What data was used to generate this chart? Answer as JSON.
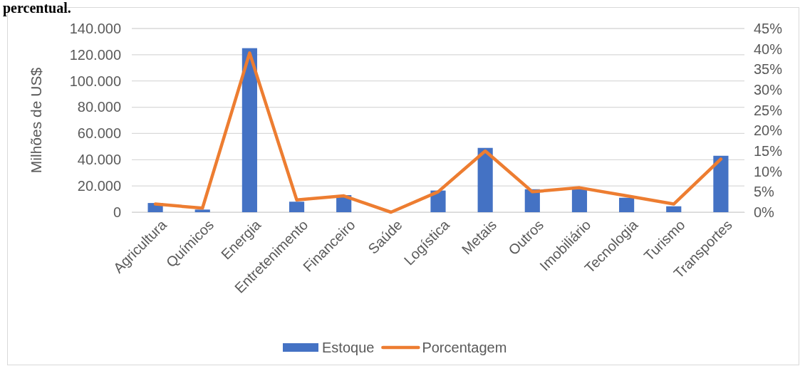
{
  "chart_data": {
    "type": "bar",
    "title": "percentual.",
    "ylabel": "Milhões de US$",
    "categories": [
      "Agricultura",
      "Químicos",
      "Energia",
      "Entretenimento",
      "Financeiro",
      "Saúde",
      "Logística",
      "Metais",
      "Outros",
      "Imobiliário",
      "Tecnologia",
      "Turismo",
      "Transportes"
    ],
    "series": [
      {
        "name": "Estoque",
        "color": "#4472c4",
        "values": [
          7000,
          2000,
          125000,
          8000,
          13000,
          0,
          16500,
          49000,
          17500,
          18500,
          11000,
          4500,
          43000
        ]
      },
      {
        "name": "Porcentagem",
        "type": "line",
        "axis": "y2",
        "color": "#ed7d31",
        "values": [
          2,
          1,
          39,
          3,
          4,
          0,
          5,
          15,
          5,
          6,
          4,
          2,
          13
        ]
      }
    ],
    "ylim": [
      0,
      140000
    ],
    "yticks": [
      {
        "value": 0,
        "label": "0"
      },
      {
        "value": 20000,
        "label": "20.000"
      },
      {
        "value": 40000,
        "label": "40.000"
      },
      {
        "value": 60000,
        "label": "60.000"
      },
      {
        "value": 80000,
        "label": "80.000"
      },
      {
        "value": 100000,
        "label": "100.000"
      },
      {
        "value": 120000,
        "label": "120.000"
      },
      {
        "value": 140000,
        "label": "140.000"
      }
    ],
    "y2lim": [
      0,
      45
    ],
    "y2ticks": [
      {
        "value": 0,
        "label": "0%"
      },
      {
        "value": 5,
        "label": "5%"
      },
      {
        "value": 10,
        "label": "10%"
      },
      {
        "value": 15,
        "label": "15%"
      },
      {
        "value": 20,
        "label": "20%"
      },
      {
        "value": 25,
        "label": "25%"
      },
      {
        "value": 30,
        "label": "30%"
      },
      {
        "value": 35,
        "label": "35%"
      },
      {
        "value": 40,
        "label": "40%"
      },
      {
        "value": 45,
        "label": "45%"
      }
    ],
    "grid": "y",
    "legend": "bottom",
    "marker": "none",
    "line_style": "solid"
  }
}
